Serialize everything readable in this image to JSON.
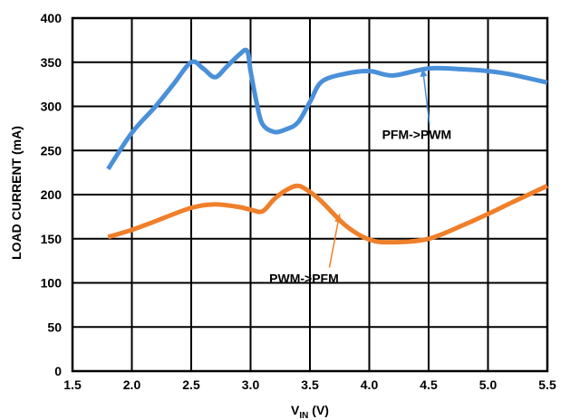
{
  "chart_data": {
    "type": "line",
    "xlabel_main": "V",
    "xlabel_sub": "IN",
    "xlabel_unit": " (V)",
    "ylabel": "LOAD CURRENT (mA)",
    "xlim": [
      1.5,
      5.5
    ],
    "ylim": [
      0,
      400
    ],
    "x_ticks": [
      "1.5",
      "2.0",
      "2.5",
      "3.0",
      "3.5",
      "4.0",
      "4.5",
      "5.0",
      "5.5"
    ],
    "y_ticks": [
      "0",
      "50",
      "100",
      "150",
      "200",
      "250",
      "300",
      "350",
      "400"
    ],
    "grid": true,
    "series": [
      {
        "color": "#4a90d9",
        "x": [
          1.8,
          2.0,
          2.2,
          2.35,
          2.5,
          2.6,
          2.7,
          2.8,
          2.9,
          2.97,
          3.0,
          3.05,
          3.1,
          3.2,
          3.3,
          3.4,
          3.5,
          3.6,
          3.8,
          4.0,
          4.2,
          4.5,
          4.8,
          5.0,
          5.2,
          5.5
        ],
        "y": [
          229,
          270,
          300,
          325,
          350,
          343,
          333,
          345,
          358,
          363,
          340,
          305,
          280,
          271,
          274,
          282,
          305,
          328,
          337,
          340,
          335,
          343,
          342,
          340,
          336,
          327
        ]
      },
      {
        "color": "#f07f2a",
        "x": [
          1.8,
          2.0,
          2.2,
          2.5,
          2.7,
          2.9,
          3.0,
          3.1,
          3.2,
          3.3,
          3.4,
          3.5,
          3.6,
          3.8,
          4.0,
          4.2,
          4.5,
          4.8,
          5.0,
          5.2,
          5.5
        ],
        "y": [
          152,
          160,
          170,
          185,
          189,
          186,
          183,
          181,
          195,
          205,
          210,
          203,
          192,
          165,
          149,
          146,
          150,
          166,
          178,
          191,
          210
        ]
      }
    ],
    "annotations": [
      {
        "text": "PFM->PWM",
        "arrow_to": [
          4.45,
          343
        ],
        "text_at": [
          4.4,
          268
        ]
      },
      {
        "text": "PWM->PFM",
        "arrow_to": [
          3.75,
          178
        ],
        "text_at": [
          3.45,
          105
        ]
      }
    ]
  }
}
